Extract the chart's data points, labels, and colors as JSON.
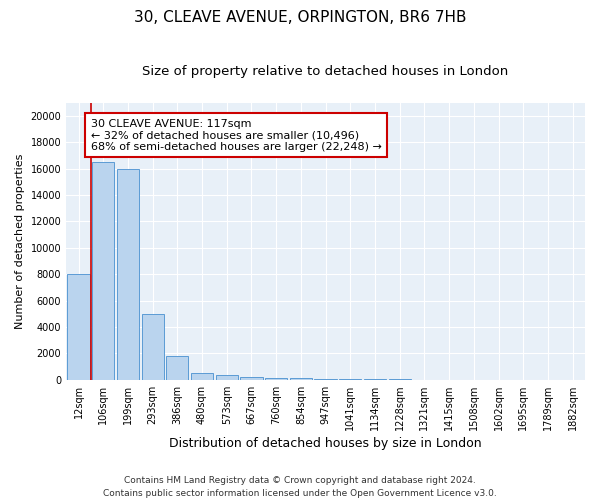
{
  "title1": "30, CLEAVE AVENUE, ORPINGTON, BR6 7HB",
  "title2": "Size of property relative to detached houses in London",
  "xlabel": "Distribution of detached houses by size in London",
  "ylabel": "Number of detached properties",
  "categories": [
    "12sqm",
    "106sqm",
    "199sqm",
    "293sqm",
    "386sqm",
    "480sqm",
    "573sqm",
    "667sqm",
    "760sqm",
    "854sqm",
    "947sqm",
    "1041sqm",
    "1134sqm",
    "1228sqm",
    "1321sqm",
    "1415sqm",
    "1508sqm",
    "1602sqm",
    "1695sqm",
    "1789sqm",
    "1882sqm"
  ],
  "values": [
    8000,
    16500,
    16000,
    5000,
    1800,
    500,
    350,
    200,
    150,
    100,
    60,
    40,
    25,
    15,
    10,
    8,
    5,
    4,
    3,
    2,
    1
  ],
  "bar_color": "#bad4ee",
  "bar_edge_color": "#5b9bd5",
  "vline_x": 1.5,
  "vline_color": "#cc0000",
  "annotation_text": "30 CLEAVE AVENUE: 117sqm\n← 32% of detached houses are smaller (10,496)\n68% of semi-detached houses are larger (22,248) →",
  "annotation_box_color": "#ffffff",
  "annotation_box_edge": "#cc0000",
  "ylim": [
    0,
    21000
  ],
  "yticks": [
    0,
    2000,
    4000,
    6000,
    8000,
    10000,
    12000,
    14000,
    16000,
    18000,
    20000
  ],
  "bg_color": "#e8f0f8",
  "footer": "Contains HM Land Registry data © Crown copyright and database right 2024.\nContains public sector information licensed under the Open Government Licence v3.0.",
  "title1_fontsize": 11,
  "title2_fontsize": 9.5,
  "xlabel_fontsize": 9,
  "ylabel_fontsize": 8,
  "annotation_fontsize": 8,
  "footer_fontsize": 6.5,
  "tick_labelsize": 7
}
